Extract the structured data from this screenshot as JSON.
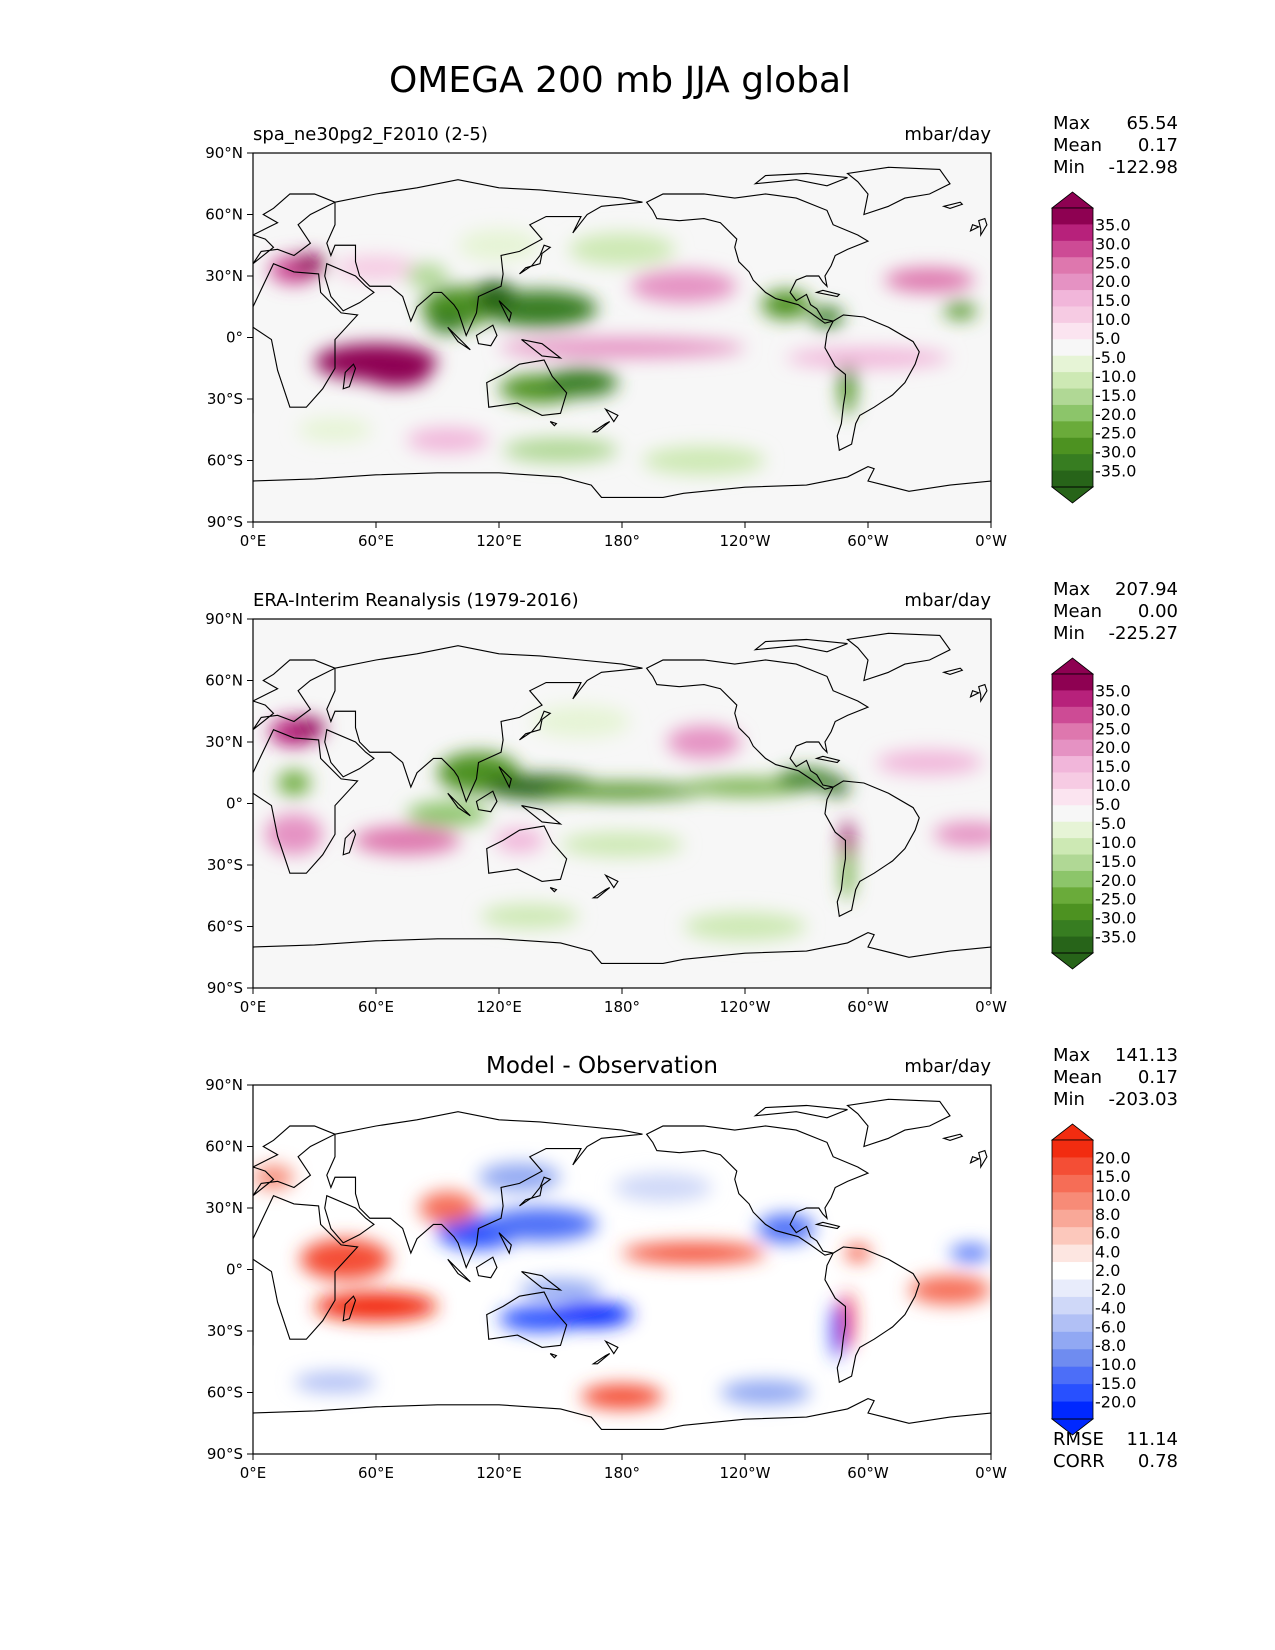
{
  "figure_title": "OMEGA 200 mb JJA global",
  "stat_labels": {
    "max": "Max",
    "mean": "Mean",
    "min": "Min",
    "rmse": "RMSE",
    "corr": "CORR"
  },
  "x_ticks": [
    "0°E",
    "60°E",
    "120°E",
    "180°",
    "120°W",
    "60°W",
    "0°W"
  ],
  "y_ticks": [
    "90°N",
    "60°N",
    "30°N",
    "0°",
    "30°S",
    "60°S",
    "90°S"
  ],
  "colors": {
    "omega_scale": [
      "#276419",
      "#377d21",
      "#4d9221",
      "#6aab3a",
      "#8cc56a",
      "#b0d895",
      "#cde9b4",
      "#e6f4d6",
      "#f7f7f7",
      "#fbe4f0",
      "#f6cbe3",
      "#f1b6da",
      "#e592c3",
      "#de77ae",
      "#cd4b95",
      "#b7217b",
      "#8e0152"
    ],
    "diff_scale": [
      "#0028ff",
      "#2850ff",
      "#4c6ef8",
      "#6f8cf0",
      "#91a8f3",
      "#b1c0f5",
      "#cfd8f8",
      "#e8ecfb",
      "#ffffff",
      "#fde6e1",
      "#fcc8bc",
      "#f9a898",
      "#f78b77",
      "#f66d56",
      "#f44e35",
      "#f22c10"
    ],
    "land_outline": "#000000"
  },
  "chart_data": [
    {
      "type": "heatmap",
      "title": "spa_ne30pg2_F2010 (2-5)",
      "units": "mbar/day",
      "x_range": [
        "0°E",
        "0°W"
      ],
      "y_range": [
        "90°S",
        "90°N"
      ],
      "colorbar": [
        "35.0",
        "30.0",
        "25.0",
        "20.0",
        "15.0",
        "10.0",
        "5.0",
        "-5.0",
        "-10.0",
        "-15.0",
        "-20.0",
        "-25.0",
        "-30.0",
        "-35.0"
      ],
      "stats": {
        "max": "65.54",
        "mean": "0.17",
        "min": "-122.98"
      }
    },
    {
      "type": "heatmap",
      "title": "ERA-Interim Reanalysis (1979-2016)",
      "units": "mbar/day",
      "x_range": [
        "0°E",
        "0°W"
      ],
      "y_range": [
        "90°S",
        "90°N"
      ],
      "colorbar": [
        "35.0",
        "30.0",
        "25.0",
        "20.0",
        "15.0",
        "10.0",
        "5.0",
        "-5.0",
        "-10.0",
        "-15.0",
        "-20.0",
        "-25.0",
        "-30.0",
        "-35.0"
      ],
      "stats": {
        "max": "207.94",
        "mean": "0.00",
        "min": "-225.27"
      }
    },
    {
      "type": "heatmap",
      "title": "Model - Observation",
      "units": "mbar/day",
      "x_range": [
        "0°E",
        "0°W"
      ],
      "y_range": [
        "90°S",
        "90°N"
      ],
      "colorbar": [
        "20.0",
        "15.0",
        "10.0",
        "8.0",
        "6.0",
        "4.0",
        "2.0",
        "-2.0",
        "-4.0",
        "-6.0",
        "-8.0",
        "-10.0",
        "-15.0",
        "-20.0"
      ],
      "stats": {
        "max": "141.13",
        "mean": "0.17",
        "min": "-203.03",
        "rmse": "11.14",
        "corr": "0.78"
      }
    }
  ]
}
